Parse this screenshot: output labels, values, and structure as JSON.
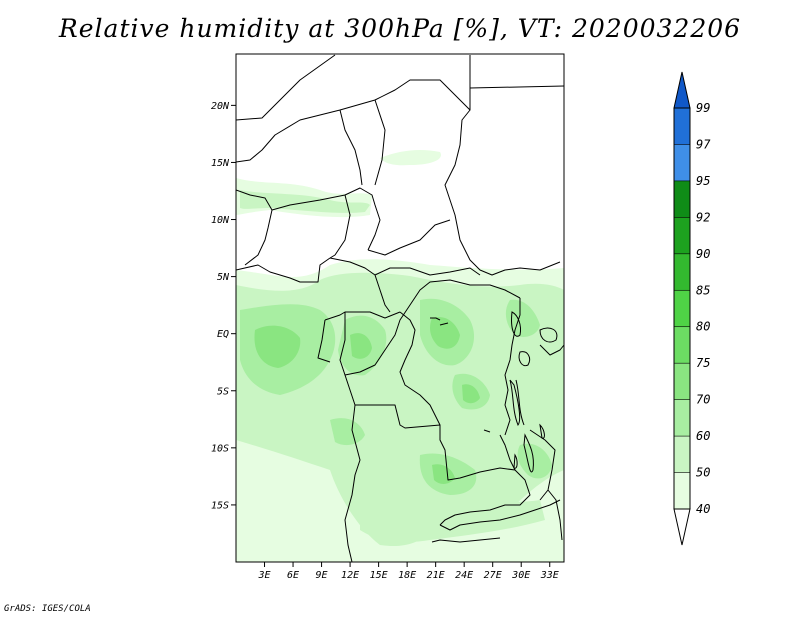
{
  "title": "Relative humidity at 300hPa [%], VT: 2020032206",
  "credit": "GrADS: IGES/COLA",
  "map": {
    "lon_range": [
      0,
      34.5
    ],
    "lat_range": [
      -20,
      24.5
    ],
    "lon_ticks": [
      {
        "value": 3,
        "label": "3E"
      },
      {
        "value": 6,
        "label": "6E"
      },
      {
        "value": 9,
        "label": "9E"
      },
      {
        "value": 12,
        "label": "12E"
      },
      {
        "value": 15,
        "label": "15E"
      },
      {
        "value": 18,
        "label": "18E"
      },
      {
        "value": 21,
        "label": "21E"
      },
      {
        "value": 24,
        "label": "24E"
      },
      {
        "value": 27,
        "label": "27E"
      },
      {
        "value": 30,
        "label": "30E"
      },
      {
        "value": 33,
        "label": "33E"
      }
    ],
    "lat_ticks": [
      {
        "value": 20,
        "label": "20N"
      },
      {
        "value": 15,
        "label": "15N"
      },
      {
        "value": 10,
        "label": "10N"
      },
      {
        "value": 5,
        "label": "5N"
      },
      {
        "value": 0,
        "label": "EQ"
      },
      {
        "value": -5,
        "label": "5S"
      },
      {
        "value": -10,
        "label": "10S"
      },
      {
        "value": -15,
        "label": "15S"
      }
    ]
  },
  "colorbar": {
    "levels": [
      "40",
      "50",
      "60",
      "70",
      "75",
      "80",
      "85",
      "90",
      "92",
      "95",
      "97",
      "99"
    ],
    "colors": [
      "#ffffff",
      "#e6fde1",
      "#c9f5c3",
      "#a8eea2",
      "#8ae581",
      "#6cdd63",
      "#4fd346",
      "#33b92f",
      "#1da21f",
      "#0f8c17",
      "#3f8fe8",
      "#2070d8",
      "#1058c8"
    ]
  },
  "palette": {
    "rh_40_50": "#e6fde1",
    "rh_50_60": "#c9f5c3",
    "rh_60_70": "#a8eea2",
    "rh_70_75": "#8ae581"
  }
}
